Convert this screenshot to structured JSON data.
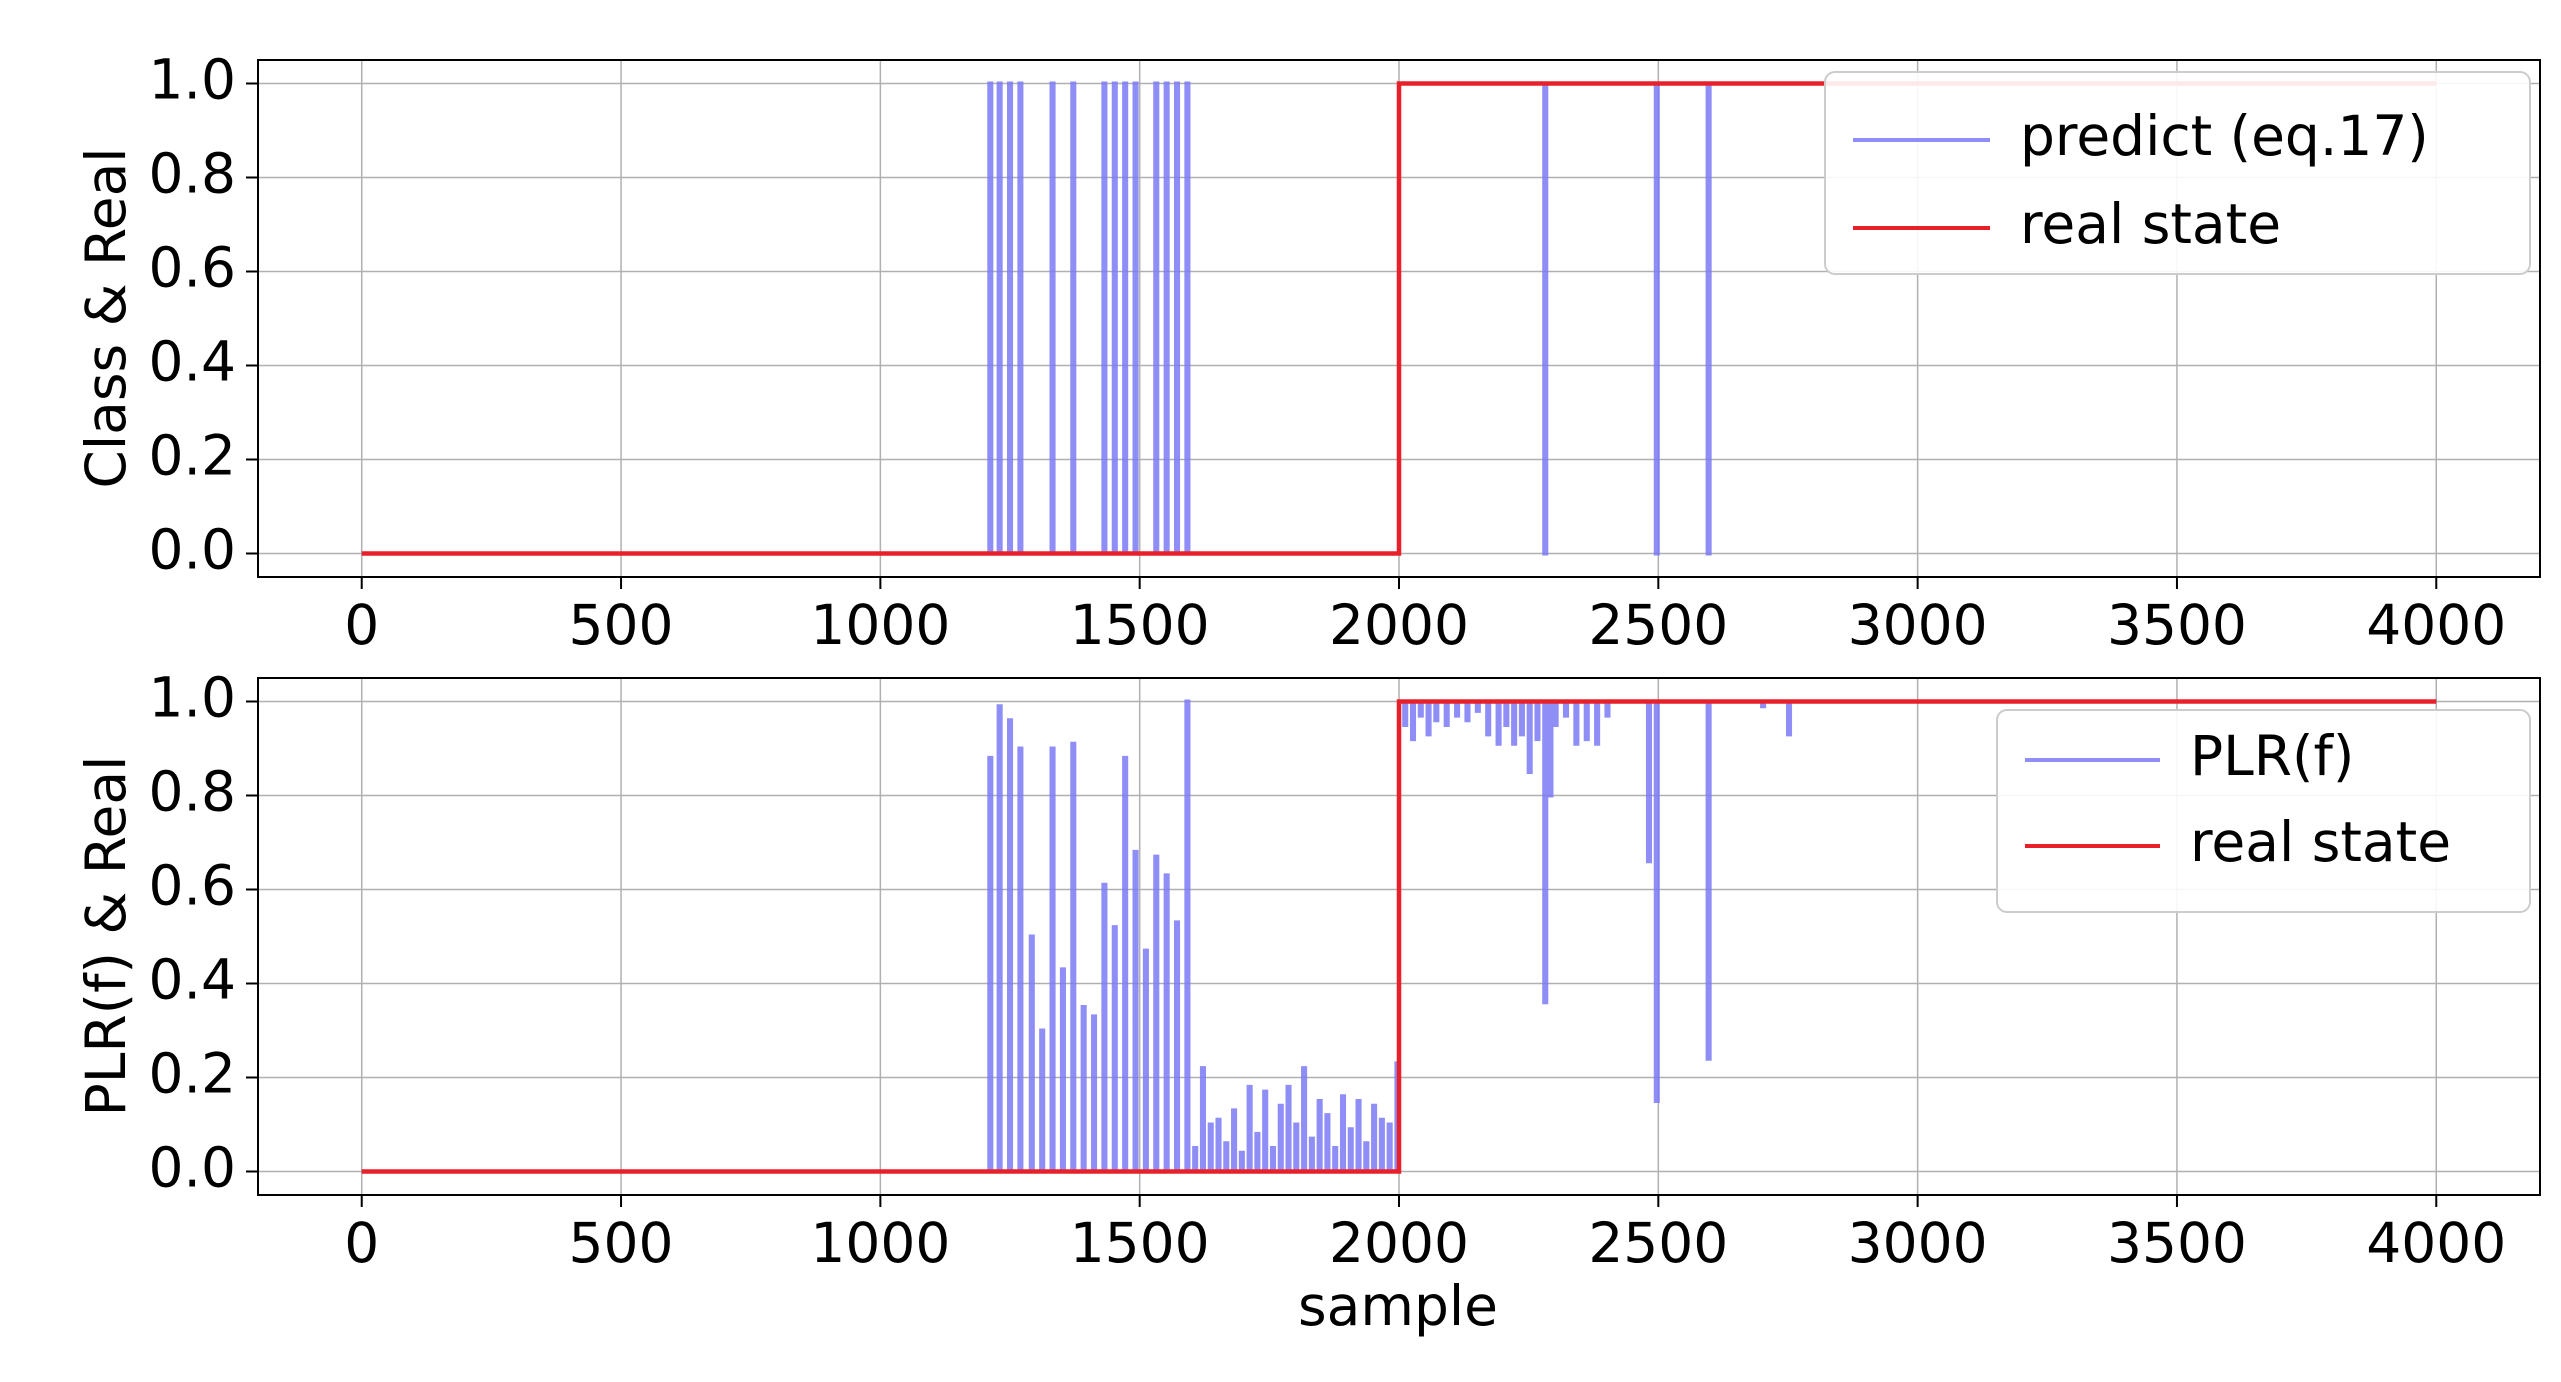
{
  "chart_data": [
    {
      "type": "line",
      "ylabel": "Class & Real",
      "xlabel": "",
      "xlim": [
        -200,
        4200
      ],
      "ylim": [
        -0.05,
        1.05
      ],
      "xticks": [
        "0",
        "500",
        "1000",
        "1500",
        "2000",
        "2500",
        "3000",
        "3500",
        "4000"
      ],
      "yticks": [
        "0.0",
        "0.2",
        "0.4",
        "0.6",
        "0.8",
        "1.0"
      ],
      "grid": true,
      "legend_position": "top-right",
      "colors": {
        "predict": "#7a7af5",
        "real": "#e8202a"
      },
      "series": [
        {
          "name": "predict (eq.17)",
          "color": "#7a7af5",
          "spikes": [
            {
              "x": 1210,
              "y": 1.0
            },
            {
              "x": 1228,
              "y": 1.0
            },
            {
              "x": 1248,
              "y": 1.0
            },
            {
              "x": 1268,
              "y": 1.0
            },
            {
              "x": 1330,
              "y": 1.0
            },
            {
              "x": 1370,
              "y": 1.0
            },
            {
              "x": 1430,
              "y": 1.0
            },
            {
              "x": 1450,
              "y": 1.0
            },
            {
              "x": 1470,
              "y": 1.0
            },
            {
              "x": 1490,
              "y": 1.0
            },
            {
              "x": 1530,
              "y": 1.0
            },
            {
              "x": 1550,
              "y": 1.0
            },
            {
              "x": 1570,
              "y": 1.0
            },
            {
              "x": 1590,
              "y": 1.0
            }
          ],
          "dips": [
            {
              "x": 2280,
              "y": 0.0
            },
            {
              "x": 2495,
              "y": 0.0
            },
            {
              "x": 2595,
              "y": 0.0
            }
          ]
        },
        {
          "name": "real state",
          "color": "#e8202a",
          "x": [
            0,
            2000,
            2000,
            4000
          ],
          "y": [
            0,
            0,
            1,
            1
          ]
        }
      ]
    },
    {
      "type": "line",
      "ylabel": "PLR(f) & Real",
      "xlabel": "sample",
      "xlim": [
        -200,
        4200
      ],
      "ylim": [
        -0.05,
        1.05
      ],
      "xticks": [
        "0",
        "500",
        "1000",
        "1500",
        "2000",
        "2500",
        "3000",
        "3500",
        "4000"
      ],
      "yticks": [
        "0.0",
        "0.2",
        "0.4",
        "0.6",
        "0.8",
        "1.0"
      ],
      "grid": true,
      "legend_position": "top-right",
      "series": [
        {
          "name": "PLR(f)",
          "color": "#7a7af5",
          "spikes": [
            {
              "x": 1210,
              "y": 0.88
            },
            {
              "x": 1228,
              "y": 0.99
            },
            {
              "x": 1248,
              "y": 0.96
            },
            {
              "x": 1268,
              "y": 0.9
            },
            {
              "x": 1290,
              "y": 0.5
            },
            {
              "x": 1310,
              "y": 0.3
            },
            {
              "x": 1330,
              "y": 0.9
            },
            {
              "x": 1350,
              "y": 0.43
            },
            {
              "x": 1370,
              "y": 0.91
            },
            {
              "x": 1390,
              "y": 0.35
            },
            {
              "x": 1410,
              "y": 0.33
            },
            {
              "x": 1430,
              "y": 0.61
            },
            {
              "x": 1450,
              "y": 0.52
            },
            {
              "x": 1470,
              "y": 0.88
            },
            {
              "x": 1490,
              "y": 0.68
            },
            {
              "x": 1510,
              "y": 0.47
            },
            {
              "x": 1530,
              "y": 0.67
            },
            {
              "x": 1550,
              "y": 0.63
            },
            {
              "x": 1570,
              "y": 0.53
            },
            {
              "x": 1590,
              "y": 1.0
            },
            {
              "x": 1605,
              "y": 0.05
            },
            {
              "x": 1620,
              "y": 0.22
            },
            {
              "x": 1635,
              "y": 0.1
            },
            {
              "x": 1650,
              "y": 0.11
            },
            {
              "x": 1665,
              "y": 0.06
            },
            {
              "x": 1680,
              "y": 0.13
            },
            {
              "x": 1695,
              "y": 0.04
            },
            {
              "x": 1710,
              "y": 0.18
            },
            {
              "x": 1725,
              "y": 0.08
            },
            {
              "x": 1740,
              "y": 0.17
            },
            {
              "x": 1755,
              "y": 0.05
            },
            {
              "x": 1770,
              "y": 0.14
            },
            {
              "x": 1785,
              "y": 0.18
            },
            {
              "x": 1800,
              "y": 0.1
            },
            {
              "x": 1815,
              "y": 0.22
            },
            {
              "x": 1830,
              "y": 0.07
            },
            {
              "x": 1845,
              "y": 0.15
            },
            {
              "x": 1860,
              "y": 0.12
            },
            {
              "x": 1875,
              "y": 0.05
            },
            {
              "x": 1890,
              "y": 0.16
            },
            {
              "x": 1905,
              "y": 0.09
            },
            {
              "x": 1920,
              "y": 0.15
            },
            {
              "x": 1935,
              "y": 0.06
            },
            {
              "x": 1950,
              "y": 0.14
            },
            {
              "x": 1965,
              "y": 0.11
            },
            {
              "x": 1980,
              "y": 0.1
            },
            {
              "x": 1995,
              "y": 0.23
            }
          ],
          "dips": [
            {
              "x": 2010,
              "y": 0.95
            },
            {
              "x": 2025,
              "y": 0.92
            },
            {
              "x": 2040,
              "y": 0.97
            },
            {
              "x": 2055,
              "y": 0.93
            },
            {
              "x": 2070,
              "y": 0.96
            },
            {
              "x": 2090,
              "y": 0.95
            },
            {
              "x": 2110,
              "y": 0.97
            },
            {
              "x": 2130,
              "y": 0.96
            },
            {
              "x": 2150,
              "y": 0.98
            },
            {
              "x": 2170,
              "y": 0.93
            },
            {
              "x": 2190,
              "y": 0.91
            },
            {
              "x": 2205,
              "y": 0.95
            },
            {
              "x": 2220,
              "y": 0.91
            },
            {
              "x": 2235,
              "y": 0.93
            },
            {
              "x": 2250,
              "y": 0.85
            },
            {
              "x": 2265,
              "y": 0.92
            },
            {
              "x": 2280,
              "y": 0.36
            },
            {
              "x": 2290,
              "y": 0.8
            },
            {
              "x": 2300,
              "y": 0.95
            },
            {
              "x": 2320,
              "y": 0.97
            },
            {
              "x": 2340,
              "y": 0.91
            },
            {
              "x": 2360,
              "y": 0.92
            },
            {
              "x": 2380,
              "y": 0.91
            },
            {
              "x": 2400,
              "y": 0.97
            },
            {
              "x": 2480,
              "y": 0.66
            },
            {
              "x": 2495,
              "y": 0.15
            },
            {
              "x": 2595,
              "y": 0.24
            },
            {
              "x": 2700,
              "y": 0.99
            },
            {
              "x": 2750,
              "y": 0.93
            }
          ]
        },
        {
          "name": "real state",
          "color": "#e8202a",
          "x": [
            0,
            2000,
            2000,
            4000
          ],
          "y": [
            0,
            0,
            1,
            1
          ]
        }
      ]
    }
  ]
}
